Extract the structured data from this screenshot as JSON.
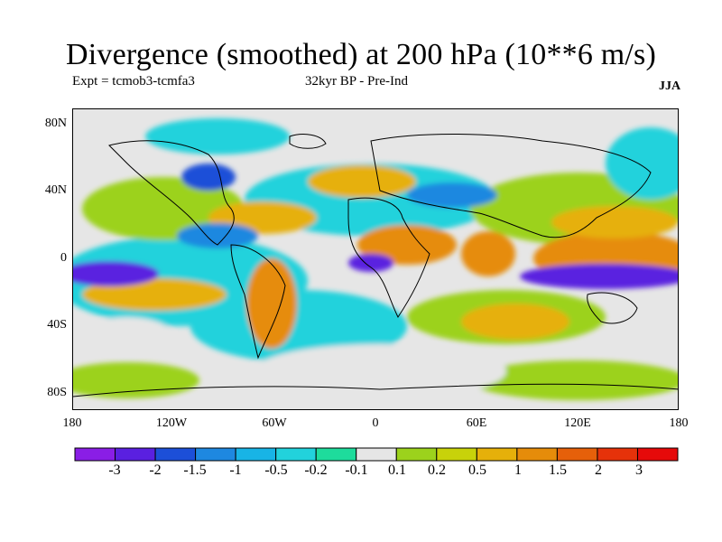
{
  "title": "Divergence (smoothed) at 200 hPa (10**6 m/s)",
  "experiment": "Expt = tcmob3-tcmfa3",
  "period": "32kyr BP - Pre-Ind",
  "season": "JJA",
  "lat_labels": [
    "80N",
    "40N",
    "0",
    "40S",
    "80S"
  ],
  "lon_labels": [
    "180",
    "120W",
    "60W",
    "0",
    "60E",
    "120E",
    "180"
  ],
  "colorbar": {
    "labels": [
      "-3",
      "-2",
      "-1.5",
      "-1",
      "-0.5",
      "-0.2",
      "-0.1",
      "0.1",
      "0.2",
      "0.5",
      "1",
      "1.5",
      "2",
      "3"
    ],
    "colors": [
      "#8a1ee6",
      "#5a20e0",
      "#1c4fd8",
      "#1e88e0",
      "#18b4e6",
      "#22d2dc",
      "#1edc9c",
      "#e6e6e6",
      "#9cd21c",
      "#c8d20a",
      "#e6b00a",
      "#e68c0a",
      "#e6600a",
      "#e6320a",
      "#e60a0a"
    ]
  }
}
